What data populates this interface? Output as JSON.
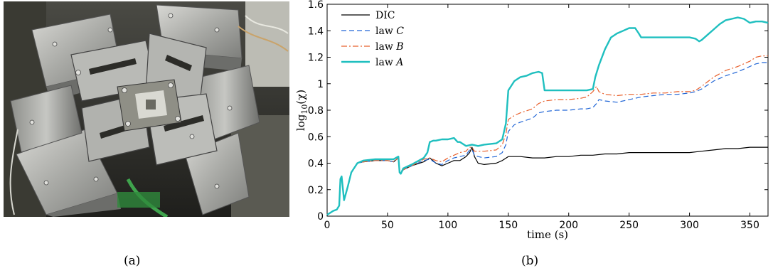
{
  "figure": {
    "panel_a_caption": "(a)",
    "panel_b_caption": "(b)"
  },
  "photo": {
    "description_icon": "biaxial-testing-machine-photo"
  },
  "chart_data": {
    "type": "line",
    "xlabel": "time (s)",
    "ylabel_base": "log",
    "ylabel_sub": "10",
    "ylabel_arg": "(χ)",
    "xlim": [
      0,
      365
    ],
    "ylim": [
      0,
      1.6
    ],
    "xticks": [
      0,
      50,
      100,
      150,
      200,
      250,
      300,
      350
    ],
    "yticks": [
      0,
      0.2,
      0.4,
      0.6,
      0.8,
      1,
      1.2,
      1.4,
      1.6
    ],
    "xtick_labels": [
      "0",
      "50",
      "100",
      "150",
      "200",
      "250",
      "300",
      "350"
    ],
    "ytick_labels": [
      "0",
      "0.2",
      "0.4",
      "0.6",
      "0.8",
      "1",
      "1.2",
      "1.4",
      "1.6"
    ],
    "grid": false,
    "legend_position": "top-left",
    "series": [
      {
        "name": "DIC",
        "label_text": "DIC",
        "label_italic": "",
        "color": "#000000",
        "style": "solid",
        "x": [
          0,
          5,
          8,
          10,
          11,
          12,
          14,
          17,
          20,
          25,
          30,
          40,
          50,
          55,
          59,
          60,
          61,
          63,
          70,
          80,
          85,
          90,
          95,
          100,
          105,
          110,
          115,
          118,
          120,
          122,
          125,
          130,
          140,
          145,
          150,
          160,
          170,
          180,
          190,
          200,
          210,
          220,
          230,
          240,
          250,
          260,
          270,
          280,
          290,
          300,
          310,
          320,
          330,
          340,
          350,
          360,
          365
        ],
        "y": [
          0.01,
          0.04,
          0.05,
          0.08,
          0.28,
          0.3,
          0.12,
          0.22,
          0.33,
          0.4,
          0.41,
          0.42,
          0.42,
          0.41,
          0.44,
          0.33,
          0.32,
          0.35,
          0.38,
          0.41,
          0.44,
          0.4,
          0.38,
          0.4,
          0.42,
          0.42,
          0.45,
          0.48,
          0.52,
          0.45,
          0.4,
          0.39,
          0.4,
          0.42,
          0.45,
          0.45,
          0.44,
          0.44,
          0.45,
          0.45,
          0.46,
          0.46,
          0.47,
          0.47,
          0.48,
          0.48,
          0.48,
          0.48,
          0.48,
          0.48,
          0.49,
          0.5,
          0.51,
          0.51,
          0.52,
          0.52,
          0.52
        ]
      },
      {
        "name": "law C",
        "label_text": "law ",
        "label_italic": "C",
        "color": "#2166d6",
        "style": "dashed",
        "x": [
          0,
          5,
          8,
          10,
          11,
          12,
          14,
          17,
          20,
          25,
          30,
          40,
          50,
          55,
          59,
          60,
          61,
          63,
          70,
          80,
          85,
          90,
          95,
          100,
          105,
          110,
          115,
          118,
          120,
          122,
          125,
          130,
          140,
          145,
          148,
          150,
          155,
          160,
          170,
          175,
          180,
          190,
          200,
          210,
          215,
          220,
          223,
          225,
          230,
          240,
          250,
          260,
          270,
          280,
          290,
          300,
          305,
          310,
          320,
          330,
          340,
          350,
          355,
          360,
          365
        ],
        "y": [
          0.01,
          0.04,
          0.05,
          0.08,
          0.28,
          0.3,
          0.12,
          0.22,
          0.33,
          0.4,
          0.41,
          0.42,
          0.42,
          0.41,
          0.44,
          0.33,
          0.32,
          0.35,
          0.38,
          0.42,
          0.43,
          0.4,
          0.39,
          0.42,
          0.44,
          0.45,
          0.46,
          0.5,
          0.5,
          0.46,
          0.45,
          0.44,
          0.45,
          0.48,
          0.54,
          0.64,
          0.69,
          0.71,
          0.74,
          0.78,
          0.79,
          0.8,
          0.8,
          0.81,
          0.81,
          0.82,
          0.85,
          0.88,
          0.87,
          0.86,
          0.88,
          0.9,
          0.91,
          0.92,
          0.92,
          0.93,
          0.94,
          0.96,
          1.02,
          1.06,
          1.09,
          1.13,
          1.15,
          1.16,
          1.16
        ]
      },
      {
        "name": "law B",
        "label_text": "law ",
        "label_italic": "B",
        "color": "#e8602c",
        "style": "dashdot",
        "x": [
          0,
          5,
          8,
          10,
          11,
          12,
          14,
          17,
          20,
          25,
          30,
          40,
          50,
          55,
          59,
          60,
          61,
          63,
          70,
          80,
          85,
          90,
          95,
          100,
          105,
          110,
          115,
          118,
          120,
          122,
          125,
          130,
          140,
          145,
          148,
          150,
          155,
          160,
          170,
          175,
          180,
          190,
          200,
          210,
          215,
          220,
          223,
          225,
          230,
          240,
          250,
          260,
          270,
          280,
          290,
          300,
          305,
          310,
          320,
          330,
          340,
          350,
          355,
          360,
          365
        ],
        "y": [
          0.01,
          0.04,
          0.05,
          0.08,
          0.28,
          0.3,
          0.12,
          0.22,
          0.33,
          0.4,
          0.41,
          0.42,
          0.42,
          0.41,
          0.44,
          0.33,
          0.32,
          0.35,
          0.38,
          0.43,
          0.44,
          0.42,
          0.41,
          0.44,
          0.46,
          0.48,
          0.49,
          0.52,
          0.52,
          0.49,
          0.49,
          0.49,
          0.5,
          0.54,
          0.62,
          0.73,
          0.76,
          0.78,
          0.81,
          0.85,
          0.87,
          0.88,
          0.88,
          0.89,
          0.9,
          0.94,
          0.98,
          0.94,
          0.92,
          0.91,
          0.92,
          0.92,
          0.93,
          0.93,
          0.94,
          0.94,
          0.95,
          0.98,
          1.05,
          1.1,
          1.13,
          1.17,
          1.2,
          1.21,
          1.21
        ]
      },
      {
        "name": "law A",
        "label_text": "law ",
        "label_italic": "A",
        "color": "#1fbfbf",
        "style": "solid-thick",
        "x": [
          0,
          5,
          8,
          10,
          11,
          12,
          14,
          17,
          20,
          25,
          30,
          40,
          50,
          55,
          59,
          60,
          61,
          63,
          70,
          80,
          83,
          85,
          88,
          90,
          95,
          100,
          105,
          108,
          110,
          115,
          120,
          125,
          130,
          140,
          145,
          148,
          150,
          155,
          160,
          165,
          170,
          175,
          178,
          180,
          190,
          200,
          210,
          215,
          220,
          222,
          225,
          230,
          235,
          240,
          245,
          250,
          255,
          258,
          260,
          270,
          280,
          290,
          300,
          305,
          308,
          310,
          315,
          320,
          325,
          330,
          335,
          340,
          345,
          350,
          355,
          360,
          365
        ],
        "y": [
          0.01,
          0.04,
          0.05,
          0.08,
          0.28,
          0.3,
          0.12,
          0.22,
          0.33,
          0.4,
          0.42,
          0.43,
          0.43,
          0.43,
          0.45,
          0.33,
          0.32,
          0.36,
          0.39,
          0.44,
          0.48,
          0.56,
          0.57,
          0.57,
          0.58,
          0.58,
          0.59,
          0.56,
          0.56,
          0.53,
          0.54,
          0.53,
          0.54,
          0.55,
          0.58,
          0.7,
          0.95,
          1.02,
          1.05,
          1.06,
          1.08,
          1.09,
          1.08,
          0.95,
          0.95,
          0.95,
          0.95,
          0.95,
          0.96,
          1.05,
          1.14,
          1.26,
          1.35,
          1.38,
          1.4,
          1.42,
          1.42,
          1.38,
          1.35,
          1.35,
          1.35,
          1.35,
          1.35,
          1.34,
          1.32,
          1.33,
          1.37,
          1.41,
          1.45,
          1.48,
          1.49,
          1.5,
          1.49,
          1.46,
          1.47,
          1.47,
          1.46
        ]
      }
    ]
  }
}
